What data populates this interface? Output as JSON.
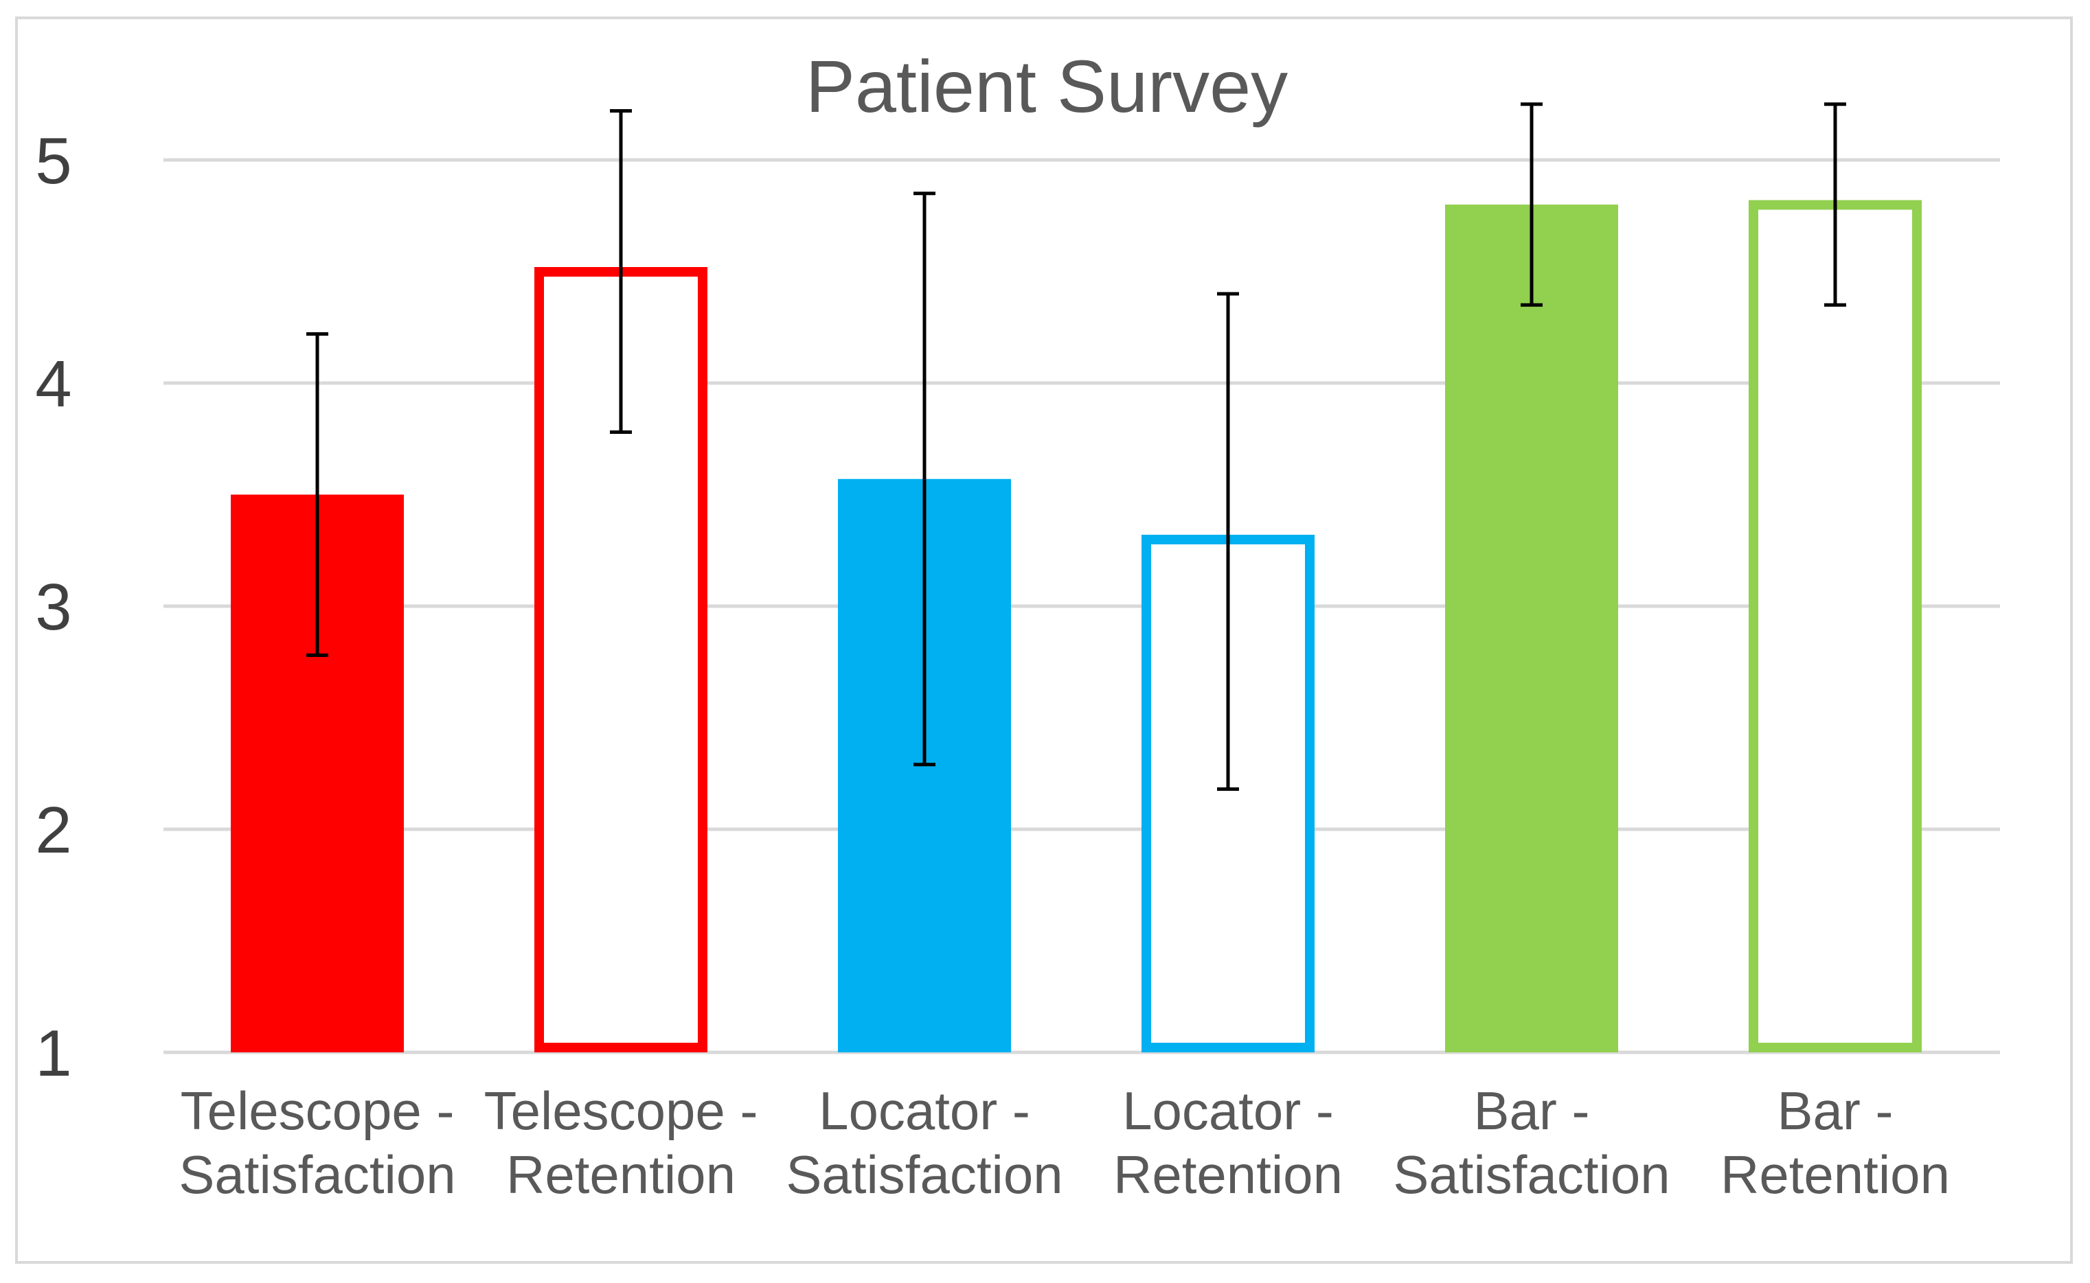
{
  "chart_data": {
    "type": "bar",
    "title": "Patient Survey",
    "xlabel": "",
    "ylabel": "",
    "ylim": [
      1,
      5
    ],
    "yticks": [
      "1",
      "2",
      "3",
      "4",
      "5"
    ],
    "grid": true,
    "legend": "none",
    "categories": [
      {
        "line1": "Telescope -",
        "line2": "Satisfaction"
      },
      {
        "line1": "Telescope -",
        "line2": "Retention"
      },
      {
        "line1": "Locator -",
        "line2": "Satisfaction"
      },
      {
        "line1": "Locator -",
        "line2": "Retention"
      },
      {
        "line1": "Bar -",
        "line2": "Satisfaction"
      },
      {
        "line1": "Bar -",
        "line2": "Retention"
      }
    ],
    "values": [
      3.5,
      4.52,
      3.57,
      3.32,
      4.8,
      4.82
    ],
    "error_low": [
      2.78,
      3.78,
      2.29,
      2.18,
      4.35,
      4.35
    ],
    "error_high": [
      4.22,
      5.22,
      4.85,
      4.4,
      5.25,
      5.25
    ],
    "colors": [
      "#ff0000",
      "#ff0000",
      "#00b0f0",
      "#00b0f0",
      "#92d050",
      "#92d050"
    ],
    "filled": [
      true,
      false,
      true,
      false,
      true,
      false
    ]
  }
}
